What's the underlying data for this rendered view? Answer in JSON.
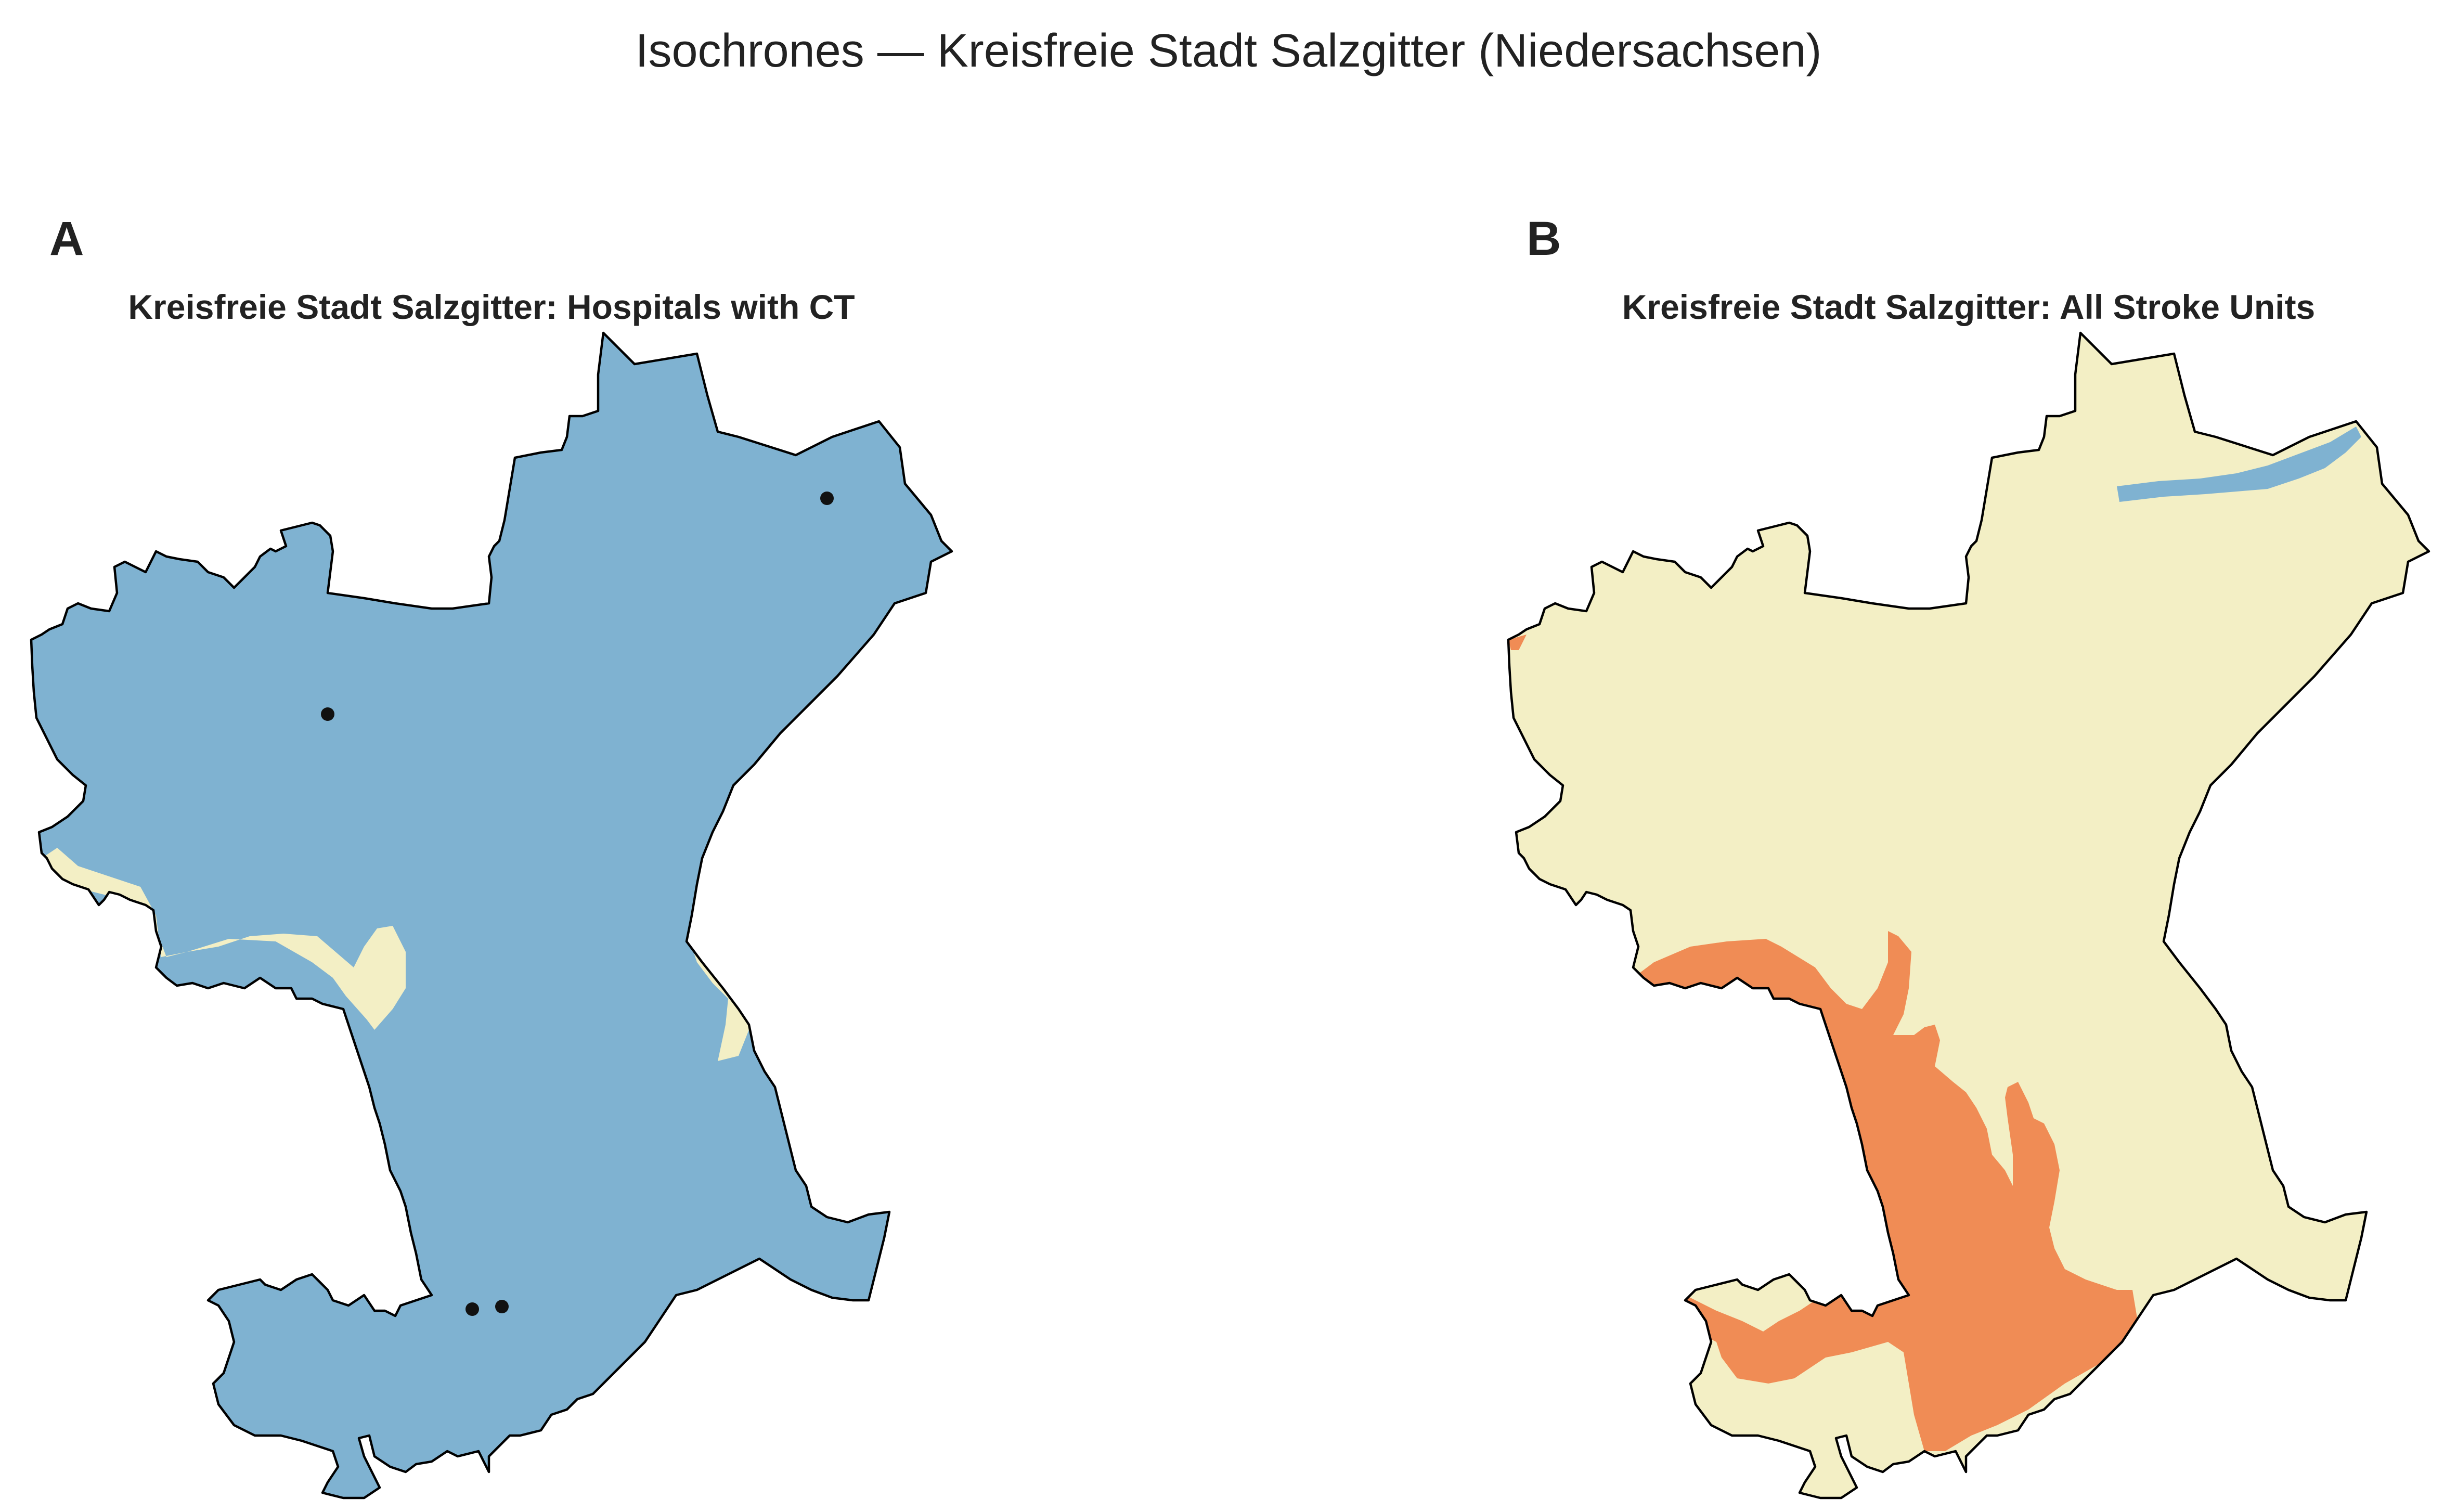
{
  "figure": {
    "title": "Isochrones — Kreisfreie Stadt Salzgitter (Niedersachsen)"
  },
  "colors": {
    "zone_blue": "#7fb2d1",
    "zone_cream": "#f3efc5",
    "zone_orange": "#f08c55",
    "outline": "#000000",
    "hospital_marker": "#111111"
  },
  "panels": [
    {
      "letter": "A",
      "title": "Kreisfreie Stadt Salzgitter: Hospitals with CT",
      "zones": [
        "zone_blue",
        "zone_cream"
      ],
      "hospital_markers": 4
    },
    {
      "letter": "B",
      "title": "Kreisfreie Stadt Salzgitter: All Stroke Units",
      "zones": [
        "zone_cream",
        "zone_orange",
        "zone_blue"
      ],
      "hospital_markers": 0
    }
  ]
}
